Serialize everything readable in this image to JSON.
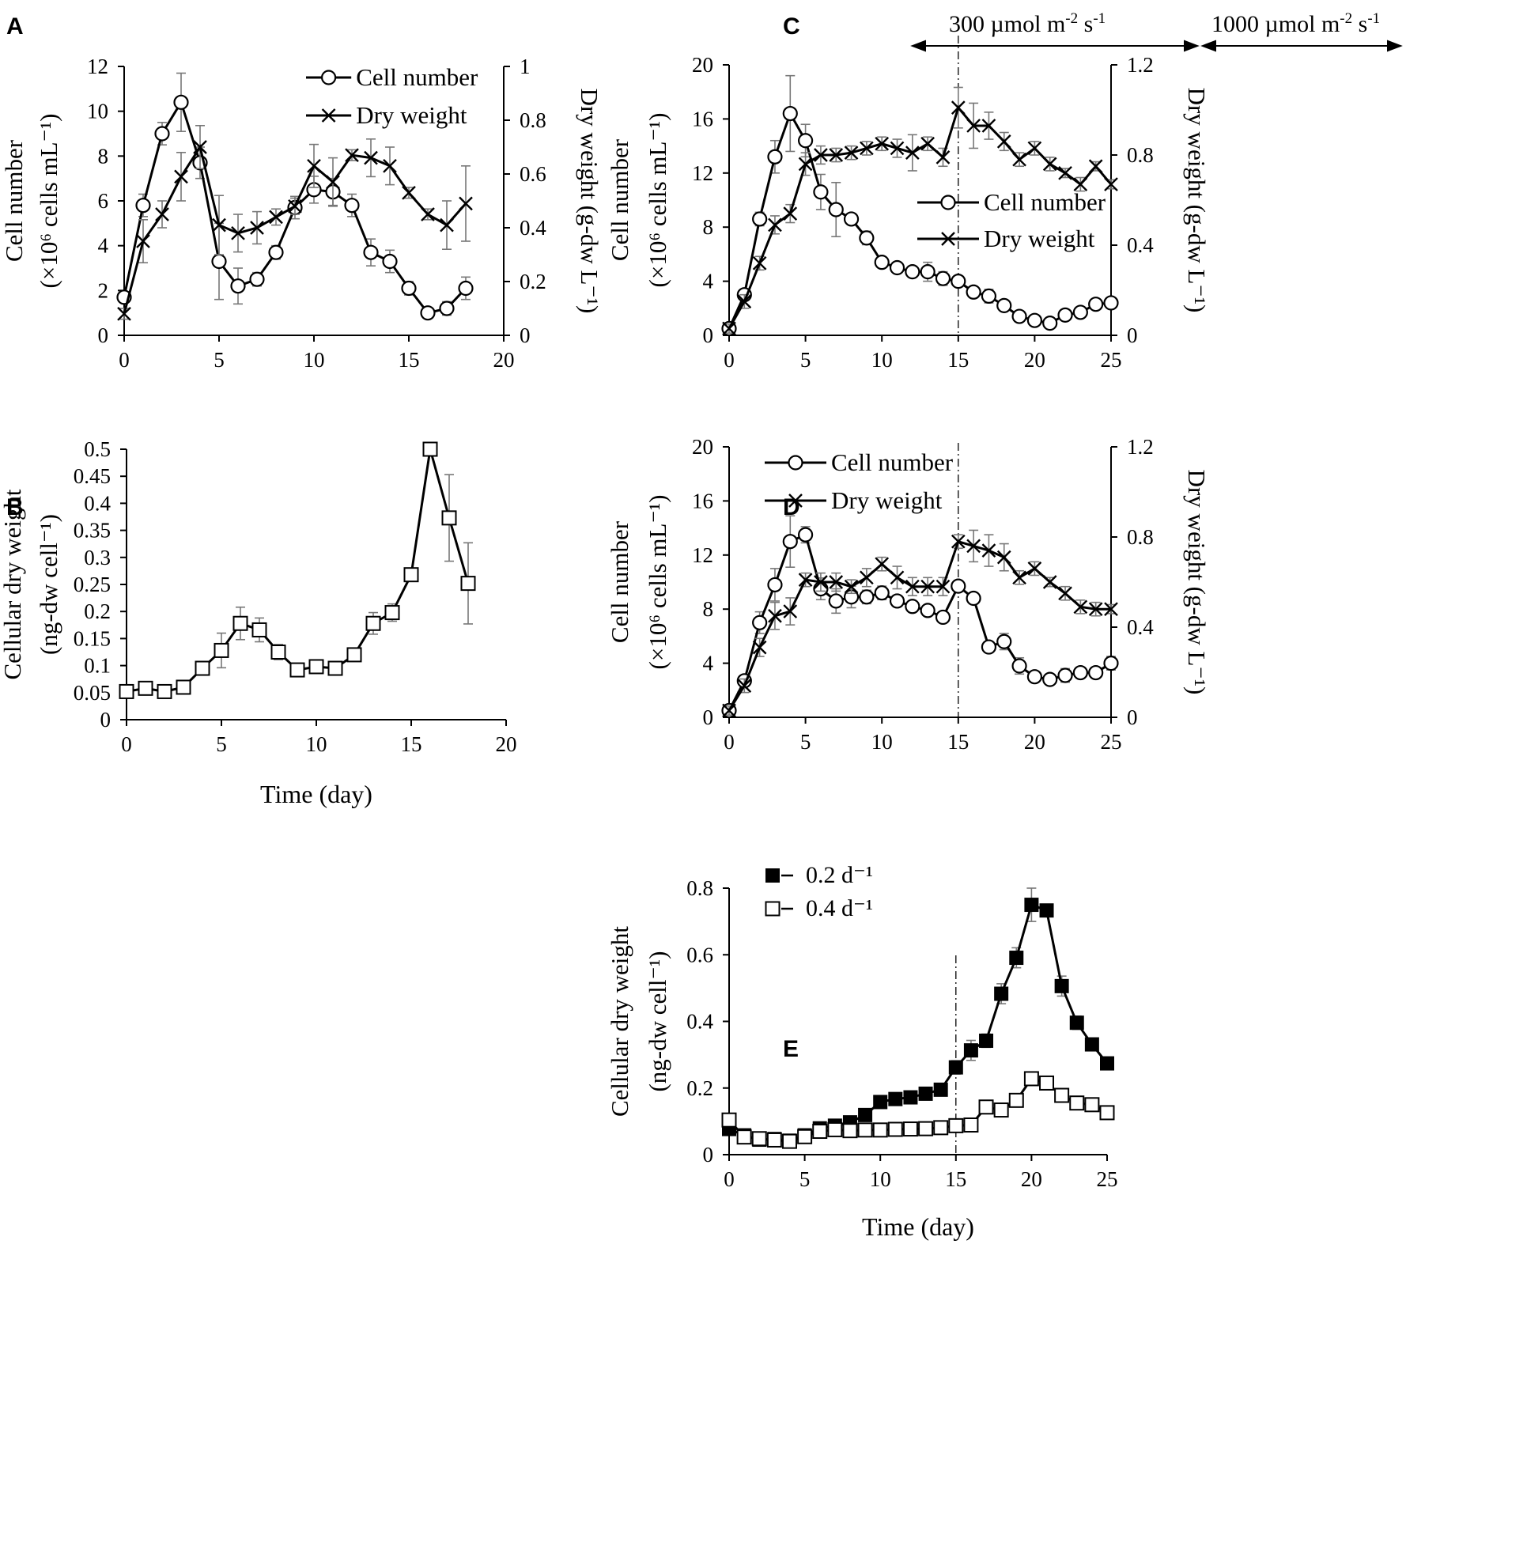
{
  "figure": {
    "panel_labels": [
      "A",
      "B",
      "C",
      "D",
      "E"
    ],
    "c_light_left": "300 µmol m",
    "c_light_left_sup1": "-2",
    "c_light_left_mid": " s",
    "c_light_left_sup2": "-1",
    "c_light_right": "1000 µmol m",
    "c_light_right_sup1": "-2",
    "c_light_right_mid": " s",
    "c_light_right_sup2": "-1"
  },
  "chart_data": [
    {
      "id": "A",
      "type": "line",
      "xlim": [
        0,
        20
      ],
      "xticks": [
        "0",
        "5",
        "10",
        "15",
        "20"
      ],
      "ylim": [
        0,
        12
      ],
      "yticks": [
        "0",
        "2",
        "4",
        "6",
        "8",
        "10",
        "12"
      ],
      "y2lim": [
        0,
        1
      ],
      "y2ticks": [
        "0",
        "0.2",
        "0.4",
        "0.6",
        "0.8",
        "1"
      ],
      "ylabel": "Cell number",
      "ylabel_units": "(×10⁶ cells mL⁻¹)",
      "y2label": "Dry weight (g-dw L⁻¹)",
      "legend_position": "top-right",
      "series": [
        {
          "name": "Cell number",
          "marker": "circle",
          "axis": "left",
          "x": [
            0,
            1,
            2,
            3,
            4,
            5,
            6,
            7,
            8,
            9,
            10,
            11,
            12,
            13,
            14,
            15,
            16,
            17,
            18
          ],
          "y": [
            1.7,
            5.8,
            9.0,
            10.4,
            7.7,
            3.3,
            2.2,
            2.5,
            3.7,
            5.7,
            6.5,
            6.4,
            5.8,
            3.7,
            3.3,
            2.1,
            1.0,
            1.2,
            2.1
          ],
          "err": [
            0.2,
            0.5,
            0.5,
            1.3,
            0.7,
            1.7,
            0.8,
            0.3,
            0.3,
            0.5,
            0.6,
            0.6,
            0.5,
            0.6,
            0.5,
            0.3,
            0.2,
            0.3,
            0.5
          ]
        },
        {
          "name": "Dry weight",
          "marker": "x",
          "axis": "right",
          "x": [
            0,
            1,
            2,
            3,
            4,
            5,
            6,
            7,
            8,
            9,
            10,
            11,
            12,
            13,
            14,
            15,
            16,
            17,
            18
          ],
          "y": [
            0.08,
            0.35,
            0.45,
            0.59,
            0.7,
            0.41,
            0.38,
            0.4,
            0.44,
            0.48,
            0.63,
            0.57,
            0.67,
            0.66,
            0.63,
            0.53,
            0.45,
            0.41,
            0.49
          ],
          "err": [
            0.02,
            0.08,
            0.05,
            0.09,
            0.08,
            0.11,
            0.07,
            0.06,
            0.03,
            0.03,
            0.08,
            0.09,
            0.02,
            0.07,
            0.07,
            0.02,
            0.02,
            0.09,
            0.14
          ]
        }
      ]
    },
    {
      "id": "B",
      "type": "line",
      "xlim": [
        0,
        20
      ],
      "xticks": [
        "0",
        "5",
        "10",
        "15",
        "20"
      ],
      "ylim": [
        0,
        0.5
      ],
      "yticks": [
        "0",
        "0.05",
        "0.1",
        "0.15",
        "0.2",
        "0.25",
        "0.3",
        "0.35",
        "0.4",
        "0.45",
        "0.5"
      ],
      "ylabel": "Cellular dry weight",
      "ylabel_units": "(ng-dw cell⁻¹)",
      "xlabel": "Time  (day)",
      "series": [
        {
          "name": "Cellular dry weight",
          "marker": "open-square",
          "x": [
            0,
            1,
            2,
            3,
            4,
            5,
            6,
            7,
            8,
            9,
            10,
            11,
            12,
            13,
            14,
            15,
            16,
            17,
            18
          ],
          "y": [
            0.052,
            0.058,
            0.052,
            0.06,
            0.095,
            0.128,
            0.178,
            0.166,
            0.125,
            0.092,
            0.098,
            0.095,
            0.12,
            0.178,
            0.198,
            0.268,
            0.5,
            0.373,
            0.252
          ],
          "err": [
            0.006,
            0.008,
            0.004,
            0.004,
            0.01,
            0.032,
            0.03,
            0.022,
            0.014,
            0.008,
            0.006,
            0.01,
            0.01,
            0.02,
            0.016,
            0.006,
            0.006,
            0.08,
            0.075
          ]
        }
      ]
    },
    {
      "id": "C",
      "type": "line",
      "xlim": [
        0,
        25
      ],
      "xticks": [
        "0",
        "5",
        "10",
        "15",
        "20",
        "25"
      ],
      "ylim": [
        0,
        20
      ],
      "yticks": [
        "0",
        "4",
        "8",
        "12",
        "16",
        "20"
      ],
      "y2lim": [
        0,
        1.2
      ],
      "y2ticks": [
        "0",
        "0.4",
        "0.8",
        "1.2"
      ],
      "ylabel": "Cell number",
      "ylabel_units": "(×10⁶ cells mL⁻¹)",
      "y2label": "Dry weight (g-dw L⁻¹)",
      "divider_x": 15,
      "legend_position": "middle-right",
      "series": [
        {
          "name": "Cell number",
          "marker": "circle",
          "axis": "left",
          "x": [
            0,
            1,
            2,
            3,
            4,
            5,
            6,
            7,
            8,
            9,
            10,
            11,
            12,
            13,
            14,
            15,
            16,
            17,
            18,
            19,
            20,
            21,
            22,
            23,
            24,
            25
          ],
          "y": [
            0.5,
            3.0,
            8.6,
            13.2,
            16.4,
            14.4,
            10.6,
            9.3,
            8.6,
            7.2,
            5.4,
            5.0,
            4.7,
            4.7,
            4.2,
            4.0,
            3.2,
            2.9,
            2.2,
            1.4,
            1.1,
            0.9,
            1.5,
            1.7,
            2.3,
            2.4
          ],
          "err": [
            0.2,
            0.4,
            0.5,
            1.2,
            2.8,
            1.2,
            1.3,
            2.0,
            0.4,
            0.5,
            0.4,
            0.3,
            0.4,
            0.7,
            0.5,
            0.4,
            0.3,
            0.5,
            0.3,
            0.3,
            0.2,
            0.2,
            0.3,
            0.3,
            0.3,
            0.3
          ]
        },
        {
          "name": "Dry weight",
          "marker": "x",
          "axis": "right",
          "x": [
            0,
            1,
            2,
            3,
            4,
            5,
            6,
            7,
            8,
            9,
            10,
            11,
            12,
            13,
            14,
            15,
            16,
            17,
            18,
            19,
            20,
            21,
            22,
            23,
            24,
            25
          ],
          "y": [
            0.03,
            0.15,
            0.32,
            0.49,
            0.54,
            0.76,
            0.8,
            0.8,
            0.81,
            0.83,
            0.85,
            0.83,
            0.81,
            0.85,
            0.79,
            1.01,
            0.93,
            0.93,
            0.86,
            0.78,
            0.83,
            0.76,
            0.72,
            0.67,
            0.75,
            0.67
          ],
          "err": [
            0.02,
            0.03,
            0.03,
            0.04,
            0.04,
            0.05,
            0.04,
            0.03,
            0.03,
            0.03,
            0.03,
            0.04,
            0.08,
            0.03,
            0.04,
            0.09,
            0.1,
            0.06,
            0.04,
            0.03,
            0.03,
            0.03,
            0.02,
            0.03,
            0.02,
            0.02
          ]
        }
      ]
    },
    {
      "id": "D",
      "type": "line",
      "xlim": [
        0,
        25
      ],
      "xticks": [
        "0",
        "5",
        "10",
        "15",
        "20",
        "25"
      ],
      "ylim": [
        0,
        20
      ],
      "yticks": [
        "0",
        "4",
        "8",
        "12",
        "16",
        "20"
      ],
      "y2lim": [
        0,
        1.2
      ],
      "y2ticks": [
        "0",
        "0.4",
        "0.8",
        "1.2"
      ],
      "ylabel": "Cell number",
      "ylabel_units": "(×10⁶ cells mL⁻¹)",
      "y2label": "Dry weight (g-dw L⁻¹)",
      "divider_x": 15,
      "legend_position": "top-left",
      "series": [
        {
          "name": "Cell number",
          "marker": "circle",
          "axis": "left",
          "x": [
            0,
            1,
            2,
            3,
            4,
            5,
            6,
            7,
            8,
            9,
            10,
            11,
            12,
            13,
            14,
            15,
            16,
            17,
            18,
            19,
            20,
            21,
            22,
            23,
            24,
            25
          ],
          "y": [
            0.5,
            2.7,
            7.0,
            9.8,
            13.0,
            13.5,
            9.5,
            8.6,
            8.9,
            8.9,
            9.2,
            8.6,
            8.2,
            7.9,
            7.4,
            9.7,
            8.8,
            5.2,
            5.6,
            3.8,
            3.0,
            2.8,
            3.1,
            3.3,
            3.3,
            4.0
          ],
          "err": [
            0.2,
            0.4,
            0.8,
            1.2,
            1.9,
            0.6,
            0.8,
            0.9,
            0.8,
            0.5,
            0.5,
            0.4,
            0.3,
            0.3,
            0.3,
            0.4,
            0.4,
            0.4,
            0.6,
            0.6,
            0.3,
            0.3,
            0.5,
            0.4,
            0.3,
            0.5
          ]
        },
        {
          "name": "Dry weight",
          "marker": "x",
          "axis": "right",
          "x": [
            0,
            1,
            2,
            3,
            4,
            5,
            6,
            7,
            8,
            9,
            10,
            11,
            12,
            13,
            14,
            15,
            16,
            17,
            18,
            19,
            20,
            21,
            22,
            23,
            24,
            25
          ],
          "y": [
            0.03,
            0.14,
            0.31,
            0.45,
            0.47,
            0.61,
            0.6,
            0.6,
            0.58,
            0.62,
            0.68,
            0.62,
            0.58,
            0.58,
            0.58,
            0.78,
            0.76,
            0.74,
            0.71,
            0.62,
            0.66,
            0.6,
            0.55,
            0.49,
            0.48,
            0.48
          ],
          "err": [
            0.02,
            0.03,
            0.04,
            0.06,
            0.06,
            0.03,
            0.04,
            0.04,
            0.03,
            0.04,
            0.03,
            0.05,
            0.04,
            0.04,
            0.04,
            0.03,
            0.07,
            0.07,
            0.06,
            0.03,
            0.03,
            0.02,
            0.03,
            0.03,
            0.03,
            0.02
          ]
        }
      ]
    },
    {
      "id": "E",
      "type": "line",
      "xlim": [
        0,
        25
      ],
      "xticks": [
        "0",
        "5",
        "10",
        "15",
        "20",
        "25"
      ],
      "ylim": [
        0,
        0.8
      ],
      "yticks": [
        "0",
        "0.2",
        "0.4",
        "0.6",
        "0.8"
      ],
      "ylabel": "Cellular dry weight",
      "ylabel_units": "(ng-dw cell⁻¹)",
      "xlabel": "Time  (day)",
      "divider_x": 15,
      "legend_position": "top-left",
      "series": [
        {
          "name": "0.2 d⁻¹",
          "marker": "filled-square",
          "x": [
            0,
            1,
            2,
            3,
            4,
            5,
            6,
            7,
            8,
            9,
            10,
            11,
            12,
            13,
            14,
            15,
            16,
            17,
            18,
            19,
            20,
            21,
            22,
            23,
            24,
            25
          ],
          "y": [
            0.077,
            0.058,
            0.045,
            0.047,
            0.042,
            0.058,
            0.079,
            0.087,
            0.097,
            0.119,
            0.158,
            0.167,
            0.172,
            0.183,
            0.195,
            0.262,
            0.313,
            0.342,
            0.483,
            0.591,
            0.75,
            0.733,
            0.506,
            0.396,
            0.331,
            0.274
          ],
          "err": [
            0.01,
            0.008,
            0.006,
            0.006,
            0.006,
            0.008,
            0.01,
            0.01,
            0.012,
            0.012,
            0.012,
            0.012,
            0.012,
            0.012,
            0.012,
            0.02,
            0.03,
            0.02,
            0.03,
            0.03,
            0.05,
            0.015,
            0.03,
            0.02,
            0.015,
            0.012
          ]
        },
        {
          "name": "0.4 d⁻¹",
          "marker": "open-square",
          "x": [
            0,
            1,
            2,
            3,
            4,
            5,
            6,
            7,
            8,
            9,
            10,
            11,
            12,
            13,
            14,
            15,
            16,
            17,
            18,
            19,
            20,
            21,
            22,
            23,
            24,
            25
          ],
          "y": [
            0.104,
            0.053,
            0.048,
            0.044,
            0.04,
            0.054,
            0.07,
            0.075,
            0.072,
            0.074,
            0.074,
            0.076,
            0.077,
            0.078,
            0.081,
            0.087,
            0.089,
            0.143,
            0.134,
            0.163,
            0.228,
            0.215,
            0.178,
            0.155,
            0.15,
            0.126
          ],
          "err": [
            0.008,
            0.006,
            0.005,
            0.005,
            0.005,
            0.006,
            0.006,
            0.006,
            0.006,
            0.006,
            0.006,
            0.006,
            0.006,
            0.006,
            0.006,
            0.006,
            0.008,
            0.01,
            0.01,
            0.01,
            0.012,
            0.012,
            0.01,
            0.01,
            0.008,
            0.008
          ]
        }
      ]
    }
  ]
}
